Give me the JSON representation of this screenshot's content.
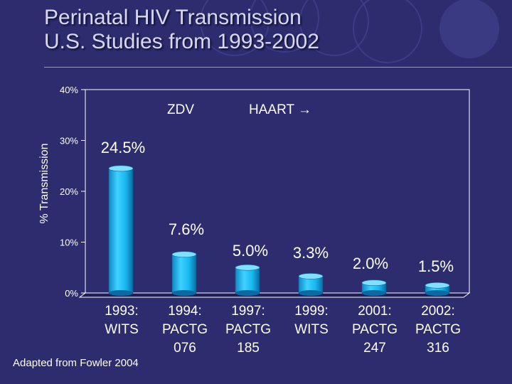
{
  "slide": {
    "title_line1": "Perinatal HIV Transmission",
    "title_line2": "U.S. Studies from 1993-2002",
    "source": "Adapted from Fowler 2004"
  },
  "colors": {
    "background": "#2c2c6e",
    "bar": "#17b8ef",
    "bar_top": "#7fe0ff",
    "text": "#ffffff"
  },
  "chart_data": {
    "type": "bar",
    "title": "",
    "ylabel": "% Transmission",
    "xlabel": "",
    "ylim": [
      0,
      40
    ],
    "yticks": [
      0,
      10,
      20,
      30,
      40
    ],
    "ytick_labels": [
      "0%",
      "10%",
      "20%",
      "30%",
      "40%"
    ],
    "categories": [
      [
        "1993:",
        "WITS",
        ""
      ],
      [
        "1994:",
        "PACTG",
        "076"
      ],
      [
        "1997:",
        "PACTG",
        "185"
      ],
      [
        "1999:",
        "WITS",
        ""
      ],
      [
        "2001:",
        "PACTG",
        "247"
      ],
      [
        "2002:",
        "PACTG",
        "316"
      ]
    ],
    "values": [
      24.5,
      7.6,
      5.0,
      3.3,
      2.0,
      1.5
    ],
    "value_labels": [
      "24.5%",
      "7.6%",
      "5.0%",
      "3.3%",
      "2.0%",
      "1.5%"
    ],
    "annotations": [
      "ZDV",
      "HAART →"
    ]
  }
}
